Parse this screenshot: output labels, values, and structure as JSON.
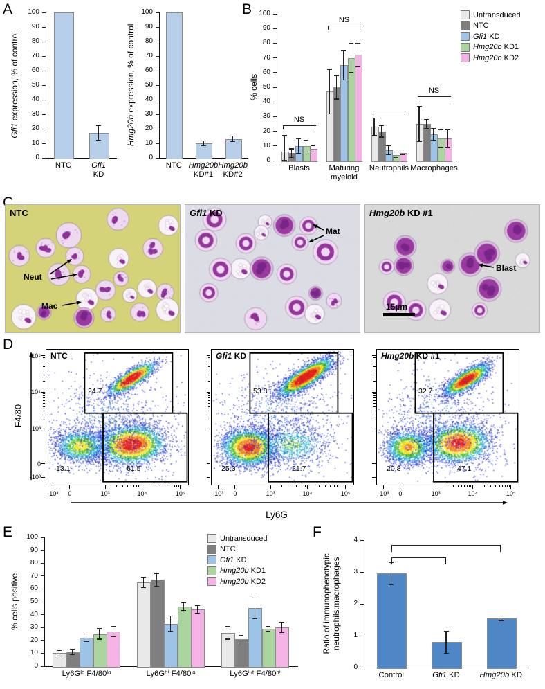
{
  "figure": {
    "panel_labels": {
      "A": "A",
      "B": "B",
      "C": "C",
      "D": "D",
      "E": "E",
      "F": "F"
    }
  },
  "chart_data": [
    {
      "id": "A-left",
      "type": "bar",
      "ylabel": "*Gfi1* expression, % of control",
      "categories": [
        "NTC",
        "*Gfi1*\nKD"
      ],
      "values": [
        100,
        17
      ],
      "errors": [
        0,
        5
      ],
      "ylim": [
        0,
        100
      ],
      "ytick_step": 10,
      "bar_color": "#b7cfe9"
    },
    {
      "id": "A-right",
      "type": "bar",
      "ylabel": "*Hmg20b* expression, % of control",
      "categories": [
        "NTC",
        "*Hmg20b*\nKD#1",
        "*Hmg20b*\nKD#2"
      ],
      "values": [
        100,
        10,
        13
      ],
      "errors": [
        0,
        1.5,
        2
      ],
      "ylim": [
        0,
        100
      ],
      "ytick_step": 10,
      "bar_color": "#b7cfe9"
    },
    {
      "id": "B",
      "type": "bar",
      "ylabel": "% cells",
      "categories": [
        "Blasts",
        "Maturing\nmyeloid",
        "Neutrophils",
        "Macrophages"
      ],
      "series": [
        {
          "name": "Untransduced",
          "color": "#e9e9e9",
          "values": [
            6,
            47,
            23,
            25
          ],
          "errors": [
            11,
            15,
            6,
            12
          ]
        },
        {
          "name": "NTC",
          "color": "#7f7f7f",
          "values": [
            5,
            50,
            20,
            25
          ],
          "errors": [
            3,
            8,
            4,
            3
          ]
        },
        {
          "name": "*Gfi1* KD",
          "color": "#9dc3e6",
          "values": [
            10,
            65,
            7,
            18
          ],
          "errors": [
            5,
            10,
            3,
            4
          ]
        },
        {
          "name": "*Hmg20b* KD1",
          "color": "#aad59f",
          "values": [
            10,
            70,
            4,
            15
          ],
          "errors": [
            4,
            10,
            2,
            6
          ]
        },
        {
          "name": "*Hmg20b* KD2",
          "color": "#f5b2e4",
          "values": [
            8,
            72,
            5,
            15
          ],
          "errors": [
            2,
            8,
            1,
            6
          ]
        }
      ],
      "ylim": [
        0,
        100
      ],
      "ytick_step": 10,
      "annotations": [
        {
          "label": "NS",
          "y": 24
        },
        {
          "label": "NS",
          "y": 92
        },
        {
          "label": "*",
          "y": 34
        },
        {
          "label": "NS",
          "y": 44
        }
      ]
    },
    {
      "id": "E",
      "type": "bar",
      "ylabel": "% cells positive",
      "categories": [
        "Ly6Gˡᵒ F4/80ˡᵒ",
        "Ly6Gʰⁱ F4/80ˡᵒ",
        "Ly6Gⁱⁿᵗ F4/80ʰⁱ"
      ],
      "series": [
        {
          "name": "Untransduced",
          "color": "#e9e9e9",
          "values": [
            10,
            65,
            26
          ],
          "errors": [
            2,
            4,
            5
          ]
        },
        {
          "name": "NTC",
          "color": "#7f7f7f",
          "values": [
            11,
            67,
            21
          ],
          "errors": [
            2,
            5,
            3
          ]
        },
        {
          "name": "*Gfi1* KD",
          "color": "#9dc3e6",
          "values": [
            22,
            33,
            45
          ],
          "errors": [
            3,
            6,
            8
          ]
        },
        {
          "name": "*Hmg20b* KD1",
          "color": "#aad59f",
          "values": [
            25,
            46,
            29
          ],
          "errors": [
            4,
            3,
            2
          ]
        },
        {
          "name": "*Hmg20b* KD2",
          "color": "#f5b2e4",
          "values": [
            27,
            44,
            30
          ],
          "errors": [
            4,
            3,
            4
          ]
        }
      ],
      "ylim": [
        0,
        100
      ],
      "ytick_step": 10
    },
    {
      "id": "F",
      "type": "bar",
      "ylabel": "Ratio of immunophenotypic\nneutrophils:macrophages",
      "categories": [
        "Control",
        "*Gfi1* KD",
        "*Hmg20b* KD"
      ],
      "values": [
        2.95,
        0.8,
        1.55
      ],
      "errors": [
        0.35,
        0.35,
        0.07
      ],
      "ylim": [
        0,
        4
      ],
      "ytick_step": 1,
      "bar_color": "#4e86c6",
      "brackets": [
        {
          "from": 0,
          "to": 1,
          "y": 3.45,
          "label": "*"
        },
        {
          "from": 0,
          "to": 2,
          "y": 3.85,
          "label": "*"
        }
      ]
    }
  ],
  "flow": {
    "xlabel": "Ly6G",
    "ylabel": "F4/80",
    "ticks": [
      "-10³",
      "0",
      "10³",
      "10⁴",
      "10⁵"
    ],
    "plots": [
      {
        "title": "NTC",
        "gate_upper_pct": "24.7",
        "gate_lower_left_pct": "13.1",
        "gate_lower_right_pct": "61.5"
      },
      {
        "title": "*Gfi1* KD",
        "gate_upper_pct": "53.3",
        "gate_lower_left_pct": "25.3",
        "gate_lower_right_pct": "21.7"
      },
      {
        "title": "*Hmg20b* KD #1",
        "gate_upper_pct": "32.7",
        "gate_lower_left_pct": "20.8",
        "gate_lower_right_pct": "47.1"
      }
    ]
  },
  "micrographs": {
    "images": [
      {
        "title": "NTC",
        "labels": [
          "Neut",
          "Mac"
        ]
      },
      {
        "title": "*Gfi1* KD",
        "labels": [
          "Mat"
        ]
      },
      {
        "title": "*Hmg20b* KD #1",
        "labels": [
          "Blast"
        ],
        "scale_bar": "15µm"
      }
    ]
  }
}
